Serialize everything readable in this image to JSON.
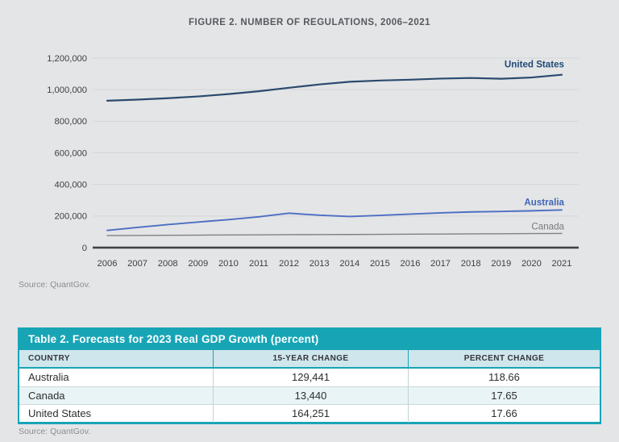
{
  "figure": {
    "title": "FIGURE 2. NUMBER OF REGULATIONS, 2006–2021",
    "source": "Source: QuantGov."
  },
  "chart_data": {
    "type": "line",
    "title": "FIGURE 2. NUMBER OF REGULATIONS, 2006–2021",
    "x": [
      2006,
      2007,
      2008,
      2009,
      2010,
      2011,
      2012,
      2013,
      2014,
      2015,
      2016,
      2017,
      2018,
      2019,
      2020,
      2021
    ],
    "xlabel": "",
    "ylabel": "",
    "ylim": [
      0,
      1200000
    ],
    "y_ticks": [
      0,
      200000,
      400000,
      600000,
      800000,
      1000000,
      1200000
    ],
    "y_tick_labels": [
      "0",
      "200,000",
      "400,000",
      "600,000",
      "800,000",
      "1,000,000",
      "1,200,000"
    ],
    "grid": true,
    "legend_position": "end-of-line-labels",
    "series": [
      {
        "name": "United States",
        "color": "#2a4a6e",
        "label_color": "#1d4a77",
        "values": [
          930074,
          937000,
          946000,
          957000,
          972000,
          990000,
          1012000,
          1033000,
          1050000,
          1058000,
          1063000,
          1070000,
          1074000,
          1069000,
          1077000,
          1094325
        ]
      },
      {
        "name": "Australia",
        "color": "#4c6ec3",
        "label_color": "#3f65b8",
        "values": [
          109086,
          128000,
          146000,
          162000,
          177000,
          195000,
          218000,
          205000,
          197000,
          204000,
          212000,
          220000,
          226000,
          229000,
          233000,
          238527
        ]
      },
      {
        "name": "Canada",
        "color": "#7f8184",
        "label_color": "#77797c",
        "values": [
          76147,
          77000,
          78000,
          79000,
          80000,
          81000,
          82000,
          82500,
          83000,
          84000,
          85000,
          86000,
          87000,
          88000,
          89000,
          89587
        ]
      }
    ]
  },
  "table": {
    "title": "Table 2. Forecasts for 2023 Real GDP Growth (percent)",
    "columns": [
      "COUNTRY",
      "15-YEAR CHANGE",
      "PERCENT CHANGE"
    ],
    "rows": [
      {
        "country": "Australia",
        "change": "129,441",
        "percent": "118.66"
      },
      {
        "country": "Canada",
        "change": "13,440",
        "percent": "17.65"
      },
      {
        "country": "United States",
        "change": "164,251",
        "percent": "17.66"
      }
    ],
    "source": "Source: QuantGov."
  },
  "colors": {
    "accent_teal": "#17a5b6",
    "table_header_bg": "#cfe6ec",
    "table_stripe_bg": "#e9f4f6",
    "background": "#e4e5e6",
    "gridline": "#d4d5d7",
    "axis": "#414347"
  }
}
